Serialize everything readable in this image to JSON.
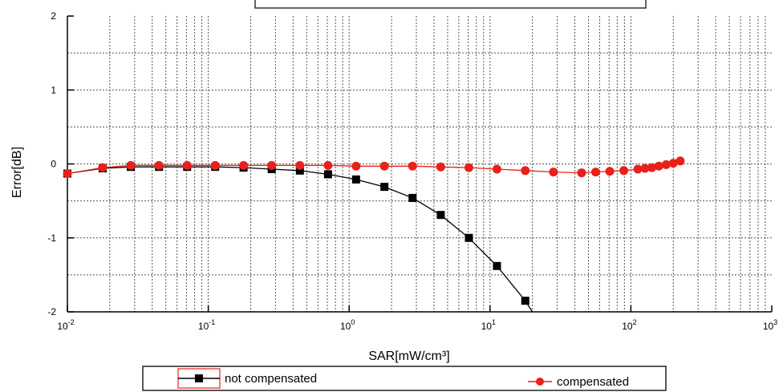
{
  "chart_data": {
    "type": "line",
    "xscale": "log",
    "xlim": [
      0.01,
      1000
    ],
    "ylim": [
      -2,
      2
    ],
    "xlabel": "SAR[mW/cm³]",
    "ylabel": "Error[dB]",
    "grid": true,
    "legend_position": "bottom",
    "x_ticks": [
      {
        "value": 0.01,
        "base": "10",
        "exp": "-2"
      },
      {
        "value": 0.1,
        "base": "10",
        "exp": "-1"
      },
      {
        "value": 1,
        "base": "10",
        "exp": "0"
      },
      {
        "value": 10,
        "base": "10",
        "exp": "1"
      },
      {
        "value": 100,
        "base": "10",
        "exp": "2"
      },
      {
        "value": 1000,
        "base": "10",
        "exp": "3"
      }
    ],
    "y_ticks": [
      {
        "value": 2,
        "label": "2"
      },
      {
        "value": 1,
        "label": "1"
      },
      {
        "value": 0,
        "label": "0"
      },
      {
        "value": -1,
        "label": "-1"
      },
      {
        "value": -2,
        "label": "-2"
      }
    ],
    "series": [
      {
        "name": "not compensated",
        "color": "#000000",
        "marker": "square",
        "x": [
          0.01,
          0.0178,
          0.0282,
          0.0447,
          0.0708,
          0.112,
          0.178,
          0.282,
          0.447,
          0.708,
          1.12,
          1.78,
          2.82,
          4.47,
          7.08,
          11.2,
          17.8,
          20
        ],
        "y": [
          -0.13,
          -0.06,
          -0.04,
          -0.04,
          -0.04,
          -0.04,
          -0.05,
          -0.07,
          -0.09,
          -0.14,
          -0.21,
          -0.31,
          -0.46,
          -0.69,
          -1.0,
          -1.38,
          -1.85,
          -2.0
        ],
        "markers_until_index": 16
      },
      {
        "name": "compensated",
        "color": "#e8211b",
        "marker": "circle",
        "x": [
          0.01,
          0.0178,
          0.0282,
          0.0447,
          0.0708,
          0.112,
          0.178,
          0.282,
          0.447,
          0.708,
          1.12,
          1.78,
          2.82,
          4.47,
          7.08,
          11.2,
          17.8,
          28.2,
          44.7,
          56.2,
          70.8,
          89.1,
          112,
          126,
          141,
          158,
          178,
          200,
          224
        ],
        "y": [
          -0.13,
          -0.05,
          -0.02,
          -0.02,
          -0.02,
          -0.02,
          -0.02,
          -0.02,
          -0.02,
          -0.02,
          -0.03,
          -0.03,
          -0.03,
          -0.04,
          -0.05,
          -0.07,
          -0.09,
          -0.11,
          -0.12,
          -0.11,
          -0.1,
          -0.09,
          -0.07,
          -0.06,
          -0.05,
          -0.03,
          -0.01,
          0.01,
          0.04
        ]
      }
    ]
  }
}
